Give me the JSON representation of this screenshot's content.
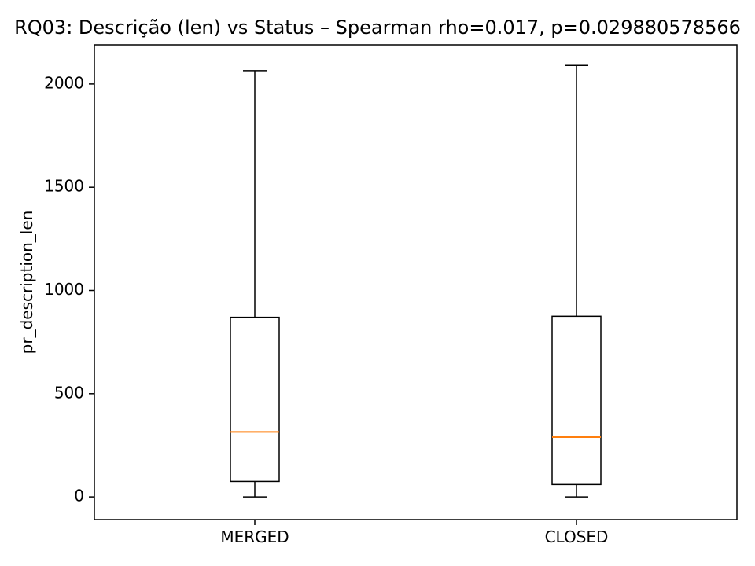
{
  "chart_data": {
    "type": "box",
    "title": "RQ03: Descrição (len) vs Status – Spearman rho=0.017, p=0.029880578566",
    "xlabel": "",
    "ylabel": "pr_description_len",
    "ylim": [
      -110,
      2190
    ],
    "yticks": [
      0,
      500,
      1000,
      1500,
      2000
    ],
    "categories": [
      "MERGED",
      "CLOSED"
    ],
    "series": [
      {
        "category": "MERGED",
        "whisker_low": 0,
        "q1": 75,
        "median": 315,
        "q3": 870,
        "whisker_high": 2065
      },
      {
        "category": "CLOSED",
        "whisker_low": 0,
        "q1": 60,
        "median": 290,
        "q3": 875,
        "whisker_high": 2090
      }
    ],
    "grid": false,
    "colors": {
      "box": "#000000",
      "median": "#ff7f0e",
      "axis": "#000000"
    }
  }
}
